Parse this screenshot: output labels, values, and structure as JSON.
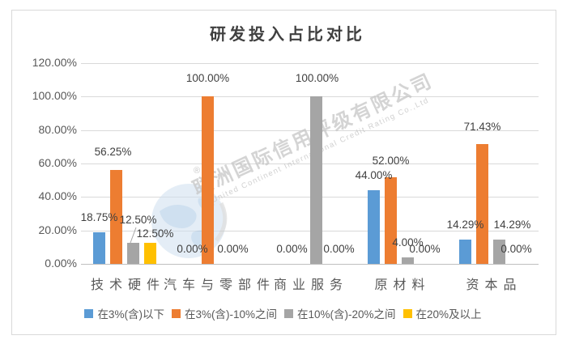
{
  "chart": {
    "title": "研发投入占比对比"
  },
  "watermark": {
    "registered_mark": "®",
    "line_cn": "联洲国际信用评级有限公司",
    "line_en": "United Continent International Credit Rating Co.,Ltd"
  },
  "colors": {
    "axis_text": "#595959",
    "data_label_text": "#404040",
    "gridline": "#D9D9D9",
    "axis_line": "#BFBFBF",
    "chart_border": "#D9D9D9",
    "watermark_text": "#C6C6C6",
    "watermark_globe": "#B9CEE6",
    "leader_line": "#A6A6A6"
  },
  "chart_data": {
    "type": "bar",
    "title": "研发投入占比对比",
    "categories": [
      "技术硬件",
      "汽车与零部件",
      "商业服务",
      "原材料",
      "资本品"
    ],
    "series": [
      {
        "name": "在3%(含)以下",
        "color": "#5B9BD5",
        "values": [
          18.75,
          0,
          0,
          44,
          14.29
        ]
      },
      {
        "name": "在3%(含)-10%之间",
        "color": "#ED7D31",
        "values": [
          56.25,
          100,
          0,
          52,
          71.43
        ]
      },
      {
        "name": "在10%(含)-20%之间",
        "color": "#A5A5A5",
        "values": [
          12.5,
          0,
          100,
          4,
          14.29
        ]
      },
      {
        "name": "在20%及以上",
        "color": "#FFC000",
        "values": [
          12.5,
          null,
          null,
          0,
          0
        ]
      }
    ],
    "value_format": "0.00%",
    "ylim": [
      0,
      120
    ],
    "ytick_step": 20,
    "grid": true,
    "legend_position": "bottom",
    "data_labels": true,
    "label_offsets": [
      [
        [
          0,
          0
        ],
        [
          2,
          0
        ],
        [
          12,
          0
        ],
        [
          0,
          0
        ],
        [
          0,
          0
        ]
      ],
      [
        [
          -4,
          -4
        ],
        [
          0,
          -4
        ],
        [
          49,
          0
        ],
        [
          0,
          -2
        ],
        [
          0,
          -3
        ]
      ],
      [
        [
          6,
          -10
        ],
        [
          10,
          0
        ],
        [
          1,
          -4
        ],
        [
          0,
          0
        ],
        [
          16,
          0
        ]
      ],
      [
        [
          6,
          7
        ],
        null,
        null,
        [
          0,
          0
        ],
        [
          0,
          0
        ]
      ]
    ]
  }
}
